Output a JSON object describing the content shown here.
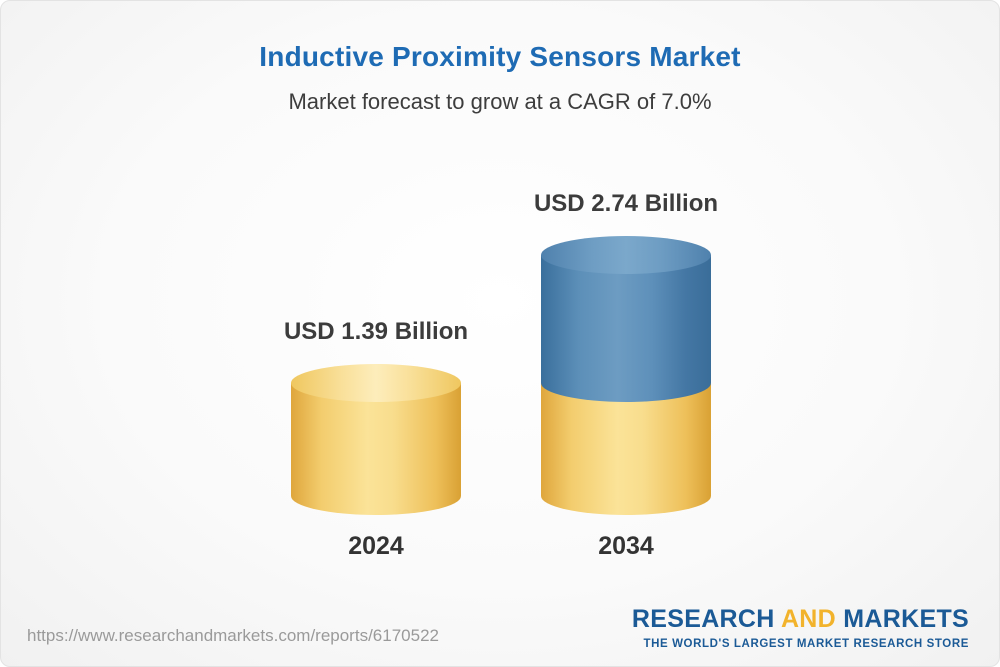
{
  "header": {
    "title": "Inductive Proximity Sensors Market",
    "subtitle": "Market forecast to grow at a CAGR of 7.0%"
  },
  "chart_data": {
    "type": "bar",
    "title": "Inductive Proximity Sensors Market",
    "subtitle": "Market forecast to grow at a CAGR of 7.0%",
    "unit": "USD Billion",
    "cagr": "7.0%",
    "categories": [
      "2024",
      "2034"
    ],
    "values": [
      1.39,
      2.74
    ],
    "value_labels": [
      "USD 1.39 Billion",
      "USD 2.74 Billion"
    ],
    "series_note": "2034 bar shows 2024 base in yellow plus growth increment in blue",
    "colors": {
      "base_segment": "#F2C963",
      "growth_segment": "#5C8FB8",
      "title": "#1E6BB4",
      "label_text": "#3C3C3C"
    },
    "legend_position": "none",
    "grid": false
  },
  "footer": {
    "url": "https://www.researchandmarkets.com/reports/6170522",
    "logo": {
      "word1": "RESEARCH",
      "word2": "AND",
      "word3": "MARKETS",
      "tagline": "THE WORLD'S LARGEST MARKET RESEARCH STORE"
    }
  }
}
